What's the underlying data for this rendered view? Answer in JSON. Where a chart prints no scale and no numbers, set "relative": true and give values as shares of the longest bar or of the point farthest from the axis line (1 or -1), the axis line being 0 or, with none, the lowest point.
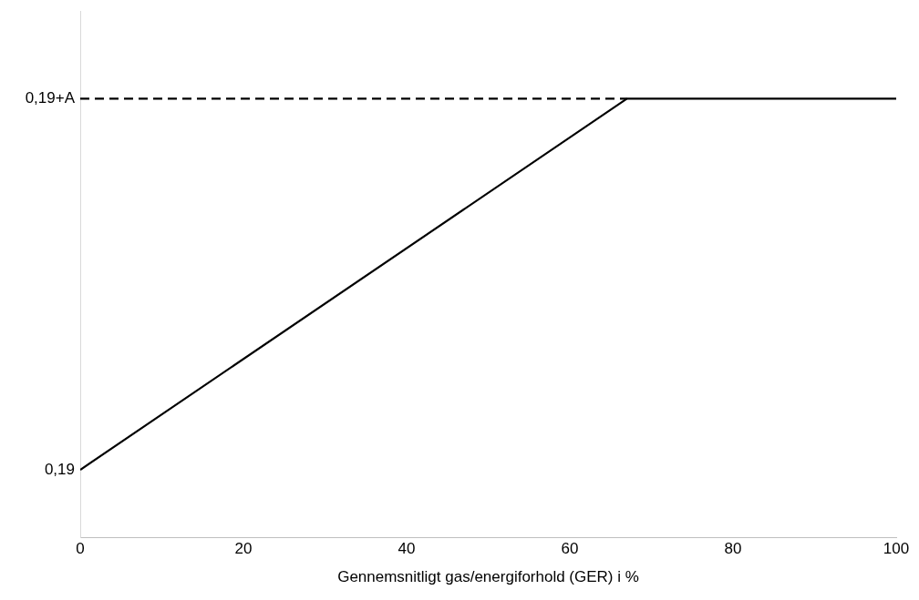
{
  "chart_data": {
    "type": "line",
    "xlabel": "Gennemsnitligt gas/energiforhold (GER) i %",
    "xlim": [
      0,
      100
    ],
    "xticks": [
      0,
      20,
      40,
      60,
      80,
      100
    ],
    "relative": true,
    "series": [
      {
        "color": "#000000",
        "x": [
          0,
          67,
          100
        ],
        "values": [
          0.154,
          1,
          1
        ],
        "line_style": "solid"
      },
      {
        "color": "#000000",
        "x": [
          0,
          67
        ],
        "values": [
          1,
          1
        ],
        "line_style": "dashed"
      }
    ],
    "annotations": [
      {
        "text": "0,19",
        "x": 0,
        "y": 0.154
      },
      {
        "text": "0,19+A",
        "x": 0,
        "y": 1
      }
    ],
    "grid": false,
    "legend": false,
    "marker": "none"
  }
}
